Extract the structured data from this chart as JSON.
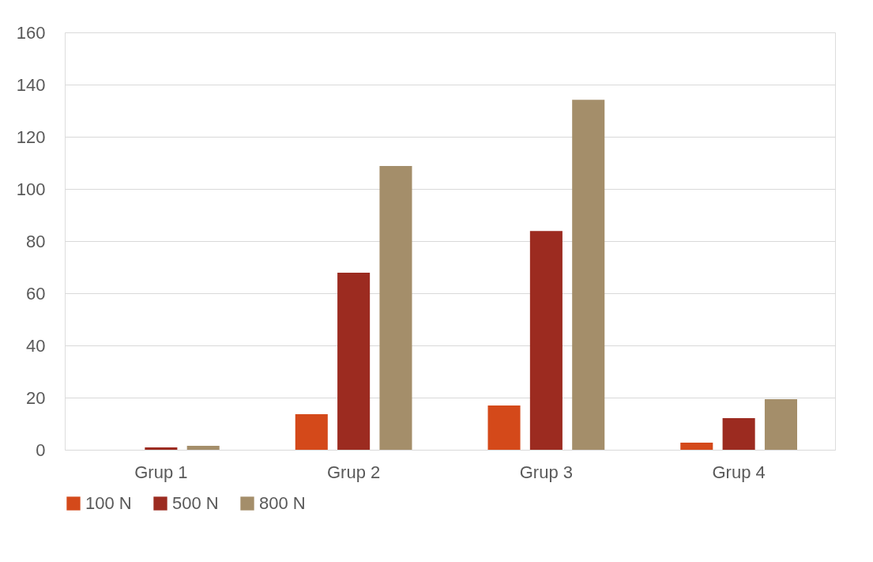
{
  "chart_data": {
    "type": "bar",
    "categories": [
      "Grup 1",
      "Grup 2",
      "Grup 3",
      "Grup 4"
    ],
    "series": [
      {
        "name": "100 N",
        "color": "#d4491a",
        "values": [
          0,
          13.6,
          17,
          2.7
        ]
      },
      {
        "name": "500 N",
        "color": "#9c2b20",
        "values": [
          0.9,
          67.9,
          83.9,
          12.1
        ]
      },
      {
        "name": "800 N",
        "color": "#a48e6a",
        "values": [
          1.5,
          108.8,
          134.2,
          19.4
        ]
      }
    ],
    "ylim": [
      0,
      160
    ],
    "yticks": [
      0,
      20,
      40,
      60,
      80,
      100,
      120,
      140,
      160
    ],
    "grid": "y",
    "legend": "bottom"
  }
}
